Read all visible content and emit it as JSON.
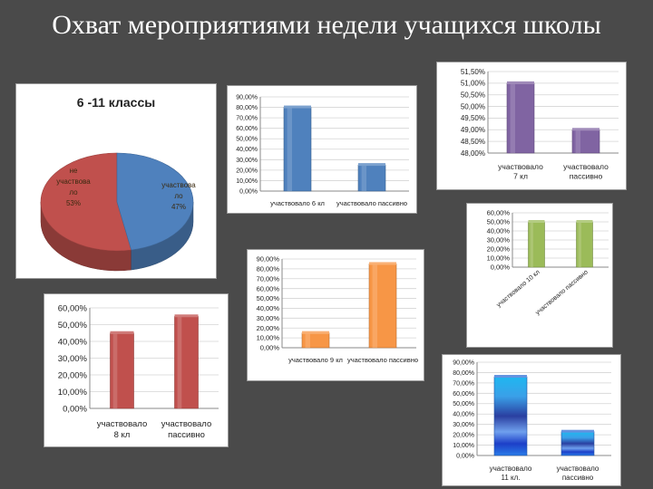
{
  "title": "Охват мероприятиями недели учащихся школы",
  "chart_data": [
    {
      "id": "pie",
      "type": "pie",
      "title": "6 -11 классы",
      "slices": [
        {
          "label_lines": [
            "не",
            "участвова",
            "ло",
            "53%"
          ],
          "value": 53,
          "color": "#c0504d"
        },
        {
          "label_lines": [
            "участвова",
            "ло",
            "47%"
          ],
          "value": 47,
          "color": "#4f81bd"
        }
      ]
    },
    {
      "id": "g6",
      "type": "bar",
      "categories": [
        "участвовало 6 кл",
        "участвовало пассивно"
      ],
      "values": [
        80,
        25
      ],
      "yticks": [
        "0,00%",
        "10,00%",
        "20,00%",
        "30,00%",
        "40,00%",
        "50,00%",
        "60,00%",
        "70,00%",
        "80,00%",
        "90,00%"
      ],
      "ylim": [
        0,
        90
      ],
      "color": "#4f81bd"
    },
    {
      "id": "g7",
      "type": "bar",
      "categories": [
        "участвовало  7 кл",
        "участвовало пассивно"
      ],
      "values": [
        51,
        49
      ],
      "yticks": [
        "48,00%",
        "48,50%",
        "49,00%",
        "49,50%",
        "50,00%",
        "50,50%",
        "51,00%",
        "51,50%"
      ],
      "ylim": [
        48,
        51.5
      ],
      "color": "#8064a2"
    },
    {
      "id": "g10",
      "type": "bar",
      "categories": [
        "участвовало 10 кл",
        "участвовало пассивно"
      ],
      "values": [
        50,
        50
      ],
      "yticks": [
        "0,00%",
        "10,00%",
        "20,00%",
        "30,00%",
        "40,00%",
        "50,00%",
        "60,00%"
      ],
      "ylim": [
        0,
        60
      ],
      "color": "#9bbb59"
    },
    {
      "id": "g9",
      "type": "bar",
      "categories": [
        "участвовало 9 кл",
        "участвовало пассивно"
      ],
      "values": [
        15,
        85
      ],
      "yticks": [
        "0,00%",
        "10,00%",
        "20,00%",
        "30,00%",
        "40,00%",
        "50,00%",
        "60,00%",
        "70,00%",
        "80,00%",
        "90,00%"
      ],
      "ylim": [
        0,
        90
      ],
      "color": "#f79646"
    },
    {
      "id": "g8",
      "type": "bar",
      "categories": [
        "участвовало 8 кл",
        "участвовало пассивно"
      ],
      "values": [
        45,
        55
      ],
      "yticks": [
        "0,00%",
        "10,00%",
        "20,00%",
        "30,00%",
        "40,00%",
        "50,00%",
        "60,00%"
      ],
      "ylim": [
        0,
        60
      ],
      "color": "#c0504d"
    },
    {
      "id": "g11",
      "type": "bar",
      "categories": [
        "участвовало 11 кл.",
        "участвовало пассивно"
      ],
      "values": [
        76,
        23
      ],
      "yticks": [
        "0,00%",
        "10,00%",
        "20,00%",
        "30,00%",
        "40,00%",
        "50,00%",
        "60,00%",
        "70,00%",
        "80,00%",
        "90,00%"
      ],
      "ylim": [
        0,
        90
      ],
      "color": "#2f6fd6"
    }
  ]
}
